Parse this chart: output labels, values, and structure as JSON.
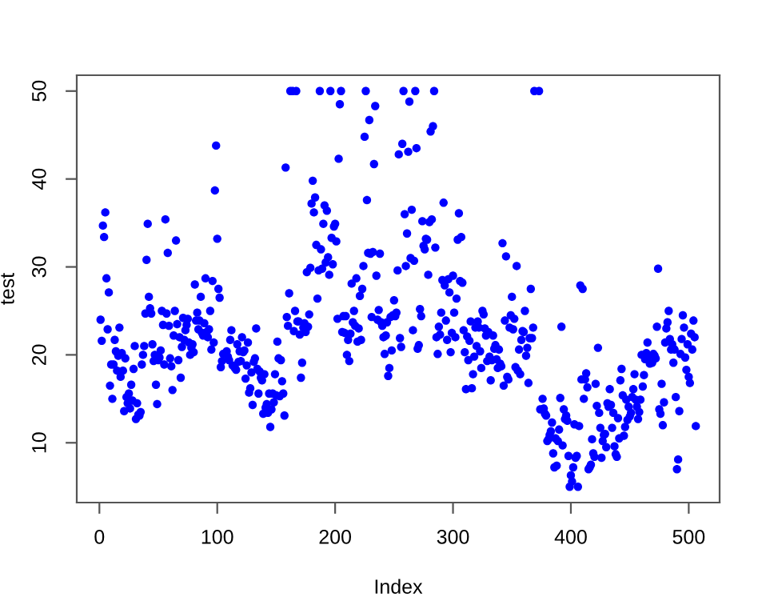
{
  "chart_data": {
    "type": "scatter",
    "xlabel": "Index",
    "ylabel": "test",
    "x": [
      1,
      2,
      3,
      4,
      5,
      6,
      7,
      8,
      9,
      10,
      11,
      12,
      13,
      14,
      15,
      16,
      17,
      18,
      19,
      20,
      21,
      22,
      23,
      24,
      25,
      26,
      27,
      28,
      29,
      30,
      31,
      32,
      33,
      34,
      35,
      36,
      37,
      38,
      39,
      40,
      41,
      42,
      43,
      44,
      45,
      46,
      47,
      48,
      49,
      50,
      51,
      52,
      53,
      54,
      55,
      56,
      57,
      58,
      59,
      60,
      61,
      62,
      63,
      64,
      65,
      66,
      67,
      68,
      69,
      70,
      71,
      72,
      73,
      74,
      75,
      76,
      77,
      78,
      79,
      80,
      81,
      82,
      83,
      84,
      85,
      86,
      87,
      88,
      89,
      90,
      91,
      92,
      93,
      94,
      95,
      96,
      97,
      98,
      99,
      100,
      101,
      102,
      103,
      104,
      105,
      106,
      107,
      108,
      109,
      110,
      111,
      112,
      113,
      114,
      115,
      116,
      117,
      118,
      119,
      120,
      121,
      122,
      123,
      124,
      125,
      126,
      127,
      128,
      129,
      130,
      131,
      132,
      133,
      134,
      135,
      136,
      137,
      138,
      139,
      140,
      141,
      142,
      143,
      144,
      145,
      146,
      147,
      148,
      149,
      150,
      151,
      152,
      153,
      154,
      155,
      156,
      157,
      158,
      159,
      160,
      161,
      162,
      163,
      164,
      165,
      166,
      167,
      168,
      169,
      170,
      171,
      172,
      173,
      174,
      175,
      176,
      177,
      178,
      179,
      180,
      181,
      182,
      183,
      184,
      185,
      186,
      187,
      188,
      189,
      190,
      191,
      192,
      193,
      194,
      195,
      196,
      197,
      198,
      199,
      200,
      201,
      202,
      203,
      204,
      205,
      206,
      207,
      208,
      209,
      210,
      211,
      212,
      213,
      214,
      215,
      216,
      217,
      218,
      219,
      220,
      221,
      222,
      223,
      224,
      225,
      226,
      227,
      228,
      229,
      230,
      231,
      232,
      233,
      234,
      235,
      236,
      237,
      238,
      239,
      240,
      241,
      242,
      243,
      244,
      245,
      246,
      247,
      248,
      249,
      250,
      251,
      252,
      253,
      254,
      255,
      256,
      257,
      258,
      259,
      260,
      261,
      262,
      263,
      264,
      265,
      266,
      267,
      268,
      269,
      270,
      271,
      272,
      273,
      274,
      275,
      276,
      277,
      278,
      279,
      280,
      281,
      282,
      283,
      284,
      285,
      286,
      287,
      288,
      289,
      290,
      291,
      292,
      293,
      294,
      295,
      296,
      297,
      298,
      299,
      300,
      301,
      302,
      303,
      304,
      305,
      306,
      307,
      308,
      309,
      310,
      311,
      312,
      313,
      314,
      315,
      316,
      317,
      318,
      319,
      320,
      321,
      322,
      323,
      324,
      325,
      326,
      327,
      328,
      329,
      330,
      331,
      332,
      333,
      334,
      335,
      336,
      337,
      338,
      339,
      340,
      341,
      342,
      343,
      344,
      345,
      346,
      347,
      348,
      349,
      350,
      351,
      352,
      353,
      354,
      355,
      356,
      357,
      358,
      359,
      360,
      361,
      362,
      363,
      364,
      365,
      366,
      367,
      368,
      369,
      370,
      371,
      372,
      373,
      374,
      375,
      376,
      377,
      378,
      379,
      380,
      381,
      382,
      383,
      384,
      385,
      386,
      387,
      388,
      389,
      390,
      391,
      392,
      393,
      394,
      395,
      396,
      397,
      398,
      399,
      400,
      401,
      402,
      403,
      404,
      405,
      406,
      407,
      408,
      409,
      410,
      411,
      412,
      413,
      414,
      415,
      416,
      417,
      418,
      419,
      420,
      421,
      422,
      423,
      424,
      425,
      426,
      427,
      428,
      429,
      430,
      431,
      432,
      433,
      434,
      435,
      436,
      437,
      438,
      439,
      440,
      441,
      442,
      443,
      444,
      445,
      446,
      447,
      448,
      449,
      450,
      451,
      452,
      453,
      454,
      455,
      456,
      457,
      458,
      459,
      460,
      461,
      462,
      463,
      464,
      465,
      466,
      467,
      468,
      469,
      470,
      471,
      472,
      473,
      474,
      475,
      476,
      477,
      478,
      479,
      480,
      481,
      482,
      483,
      484,
      485,
      486,
      487,
      488,
      489,
      490,
      491,
      492,
      493,
      494,
      495,
      496,
      497,
      498,
      499,
      500,
      501,
      502,
      503,
      504,
      505,
      506
    ],
    "series": [
      {
        "color": "#0000ff",
        "values": [
          24.0,
          21.6,
          34.7,
          33.4,
          36.2,
          28.7,
          22.9,
          27.1,
          16.5,
          18.9,
          15.0,
          18.9,
          21.7,
          20.4,
          18.2,
          19.9,
          23.1,
          17.5,
          20.2,
          18.2,
          13.6,
          19.6,
          15.2,
          14.5,
          15.6,
          13.9,
          16.6,
          14.8,
          18.4,
          21.0,
          12.7,
          14.5,
          13.2,
          13.1,
          13.5,
          18.9,
          20.0,
          21.0,
          24.7,
          30.8,
          34.9,
          26.6,
          25.3,
          24.7,
          21.2,
          19.3,
          20.0,
          16.6,
          14.4,
          19.4,
          19.7,
          20.5,
          25.0,
          23.4,
          18.9,
          35.4,
          24.7,
          31.6,
          23.3,
          19.6,
          18.7,
          16.0,
          22.2,
          25.0,
          33.0,
          23.5,
          19.4,
          22.0,
          17.4,
          20.9,
          24.2,
          21.7,
          22.8,
          23.4,
          24.1,
          21.4,
          20.0,
          20.8,
          21.2,
          20.3,
          28.0,
          23.9,
          24.8,
          22.9,
          23.9,
          26.6,
          22.5,
          22.2,
          23.6,
          28.7,
          22.6,
          22.0,
          22.9,
          25.0,
          20.6,
          28.4,
          21.4,
          38.7,
          43.8,
          33.2,
          27.5,
          26.5,
          18.6,
          19.3,
          20.1,
          null,
          null,
          20.4,
          19.8,
          19.4,
          21.7,
          22.8,
          18.8,
          null,
          18.5,
          18.3,
          21.2,
          19.2,
          20.4,
          19.3,
          22.0,
          20.3,
          20.5,
          17.3,
          18.8,
          21.4,
          15.7,
          16.2,
          18.0,
          14.3,
          19.2,
          19.6,
          23.0,
          18.4,
          15.6,
          18.1,
          17.4,
          17.1,
          13.3,
          17.8,
          14.0,
          14.4,
          13.4,
          15.6,
          11.8,
          13.8,
          15.6,
          14.6,
          17.8,
          15.4,
          21.5,
          19.6,
          15.3,
          19.4,
          17.0,
          15.6,
          13.1,
          41.3,
          24.3,
          23.3,
          27.0,
          50.0,
          null,
          50.0,
          22.7,
          25.0,
          50.0,
          23.8,
          23.8,
          22.3,
          17.4,
          19.1,
          23.1,
          23.6,
          22.6,
          29.4,
          23.2,
          24.6,
          29.9,
          37.2,
          39.8,
          36.2,
          37.9,
          32.5,
          26.4,
          29.6,
          50.0,
          32.0,
          29.8,
          34.9,
          37.0,
          30.5,
          36.4,
          31.1,
          29.1,
          50.0,
          33.3,
          30.3,
          34.6,
          34.9,
          32.9,
          24.1,
          42.3,
          48.5,
          50.0,
          22.6,
          24.4,
          22.5,
          24.4,
          20.0,
          21.7,
          19.3,
          22.4,
          28.1,
          23.7,
          25.0,
          23.3,
          28.7,
          21.5,
          23.0,
          26.7,
          21.7,
          27.5,
          30.1,
          44.8,
          50.0,
          37.6,
          31.6,
          46.7,
          31.5,
          24.3,
          31.7,
          41.7,
          48.3,
          29.0,
          24.0,
          25.1,
          31.5,
          23.7,
          23.3,
          22.0,
          20.1,
          22.2,
          23.7,
          17.6,
          18.5,
          24.3,
          20.5,
          24.5,
          26.2,
          24.4,
          24.8,
          29.6,
          42.8,
          21.9,
          20.9,
          44.0,
          50.0,
          36.0,
          30.1,
          33.8,
          43.1,
          48.8,
          31.0,
          36.5,
          22.8,
          30.7,
          50.0,
          43.5,
          20.7,
          21.1,
          25.2,
          24.4,
          35.2,
          32.4,
          32.0,
          33.2,
          33.1,
          29.1,
          35.1,
          45.4,
          35.4,
          46.0,
          50.0,
          32.2,
          22.0,
          20.1,
          23.2,
          22.3,
          24.8,
          28.5,
          37.3,
          27.9,
          23.9,
          21.7,
          28.6,
          27.1,
          20.3,
          22.5,
          29.0,
          24.8,
          22.0,
          26.4,
          33.1,
          36.1,
          28.4,
          33.4,
          28.2,
          22.8,
          20.3,
          16.1,
          22.1,
          19.4,
          21.6,
          23.8,
          16.2,
          17.8,
          19.8,
          23.1,
          21.0,
          23.8,
          23.1,
          20.4,
          18.5,
          25.0,
          24.6,
          23.0,
          22.2,
          19.3,
          22.6,
          19.8,
          17.1,
          19.4,
          22.2,
          20.7,
          21.1,
          19.5,
          18.5,
          20.6,
          19.0,
          18.7,
          32.7,
          16.5,
          23.9,
          31.2,
          17.5,
          17.2,
          23.1,
          24.5,
          26.6,
          22.9,
          24.1,
          18.6,
          30.1,
          18.2,
          20.6,
          17.8,
          21.7,
          22.7,
          22.6,
          25.0,
          19.9,
          20.8,
          16.8,
          21.9,
          27.5,
          21.9,
          23.1,
          50.0,
          null,
          null,
          null,
          50.0,
          13.8,
          null,
          15.0,
          13.9,
          13.3,
          13.1,
          10.2,
          10.4,
          10.9,
          11.3,
          12.3,
          8.8,
          7.2,
          10.5,
          7.4,
          10.2,
          11.5,
          15.1,
          23.2,
          9.7,
          13.8,
          12.7,
          13.1,
          12.5,
          8.5,
          5.0,
          6.3,
          5.6,
          7.2,
          12.1,
          8.3,
          8.5,
          5.0,
          11.9,
          27.9,
          17.2,
          27.5,
          15.0,
          17.2,
          17.9,
          16.3,
          7.0,
          7.2,
          7.5,
          10.4,
          8.8,
          8.4,
          16.7,
          14.2,
          20.8,
          13.4,
          11.7,
          8.3,
          10.2,
          10.9,
          11.0,
          9.5,
          14.5,
          14.1,
          16.1,
          14.3,
          11.7,
          13.4,
          9.6,
          8.7,
          8.4,
          12.8,
          10.5,
          17.1,
          18.4,
          15.4,
          10.8,
          11.8,
          14.9,
          12.6,
          14.1,
          13.0,
          13.4,
          15.2,
          16.1,
          17.8,
          14.9,
          14.1,
          12.7,
          13.5,
          14.9,
          20.0,
          16.4,
          17.7,
          19.5,
          20.2,
          21.4,
          19.9,
          19.0,
          null,
          19.1,
          20.1,
          19.9,
          19.6,
          23.2,
          29.8,
          13.8,
          13.3,
          16.7,
          12.0,
          14.6,
          21.4,
          23.0,
          23.7,
          25.0,
          21.8,
          20.6,
          21.2,
          19.1,
          20.6,
          15.2,
          7.0,
          8.1,
          13.6,
          20.1,
          21.8,
          24.5,
          23.1,
          19.7,
          18.3,
          21.2,
          17.5,
          16.8,
          22.4,
          20.6,
          23.9,
          22.0,
          11.9
        ]
      }
    ],
    "xlim": [
      -19.2,
      526.2
    ],
    "ylim": [
      3.2,
      51.8
    ],
    "xticks": [
      0,
      100,
      200,
      300,
      400,
      500
    ],
    "yticks": [
      10,
      20,
      30,
      40,
      50
    ],
    "marker": "circle",
    "grid": false
  }
}
